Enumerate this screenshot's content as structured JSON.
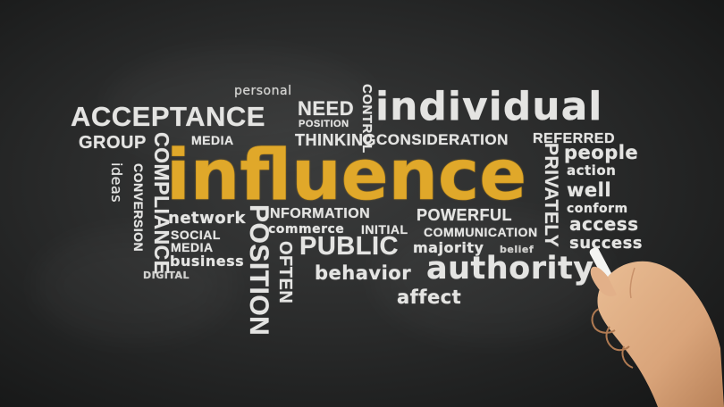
{
  "accent_color": "#e0a82a",
  "chalk_color": "#e4e4e2",
  "board_color": "#2a2b2b",
  "words": {
    "personal": "personal",
    "need": "NEED",
    "control": "CONTROL",
    "individual": "individual",
    "acceptance": "ACCEPTANCE",
    "position_small": "POSITION",
    "thinking": "THINKING",
    "consideration": "CONSIDERATION",
    "referred": "REFERRED",
    "group": "GROUP",
    "media": "MEDIA",
    "people": "people",
    "compliance": "COMPLIANCE",
    "conversion": "CONVERSION",
    "ideas": "ideas",
    "influence": "influence",
    "privately": "PRIVATELY",
    "action": "action",
    "well": "well",
    "conform": "conform",
    "network": "network",
    "information": "INFORMATION",
    "powerful": "POWERFUL",
    "access": "access",
    "social": "SOCIAL",
    "commerce": "commerce",
    "initial": "INITIAL",
    "communication": "COMMUNICATION",
    "success": "success",
    "media_small": "MEDIA",
    "public": "PUBLIC",
    "majority": "majority",
    "belief": "belief",
    "business": "business",
    "position_large": "POSITION",
    "often": "OFTEN",
    "digital": "DIGITAL",
    "behavior": "behavior",
    "authority": "authority",
    "affect": "affect"
  }
}
